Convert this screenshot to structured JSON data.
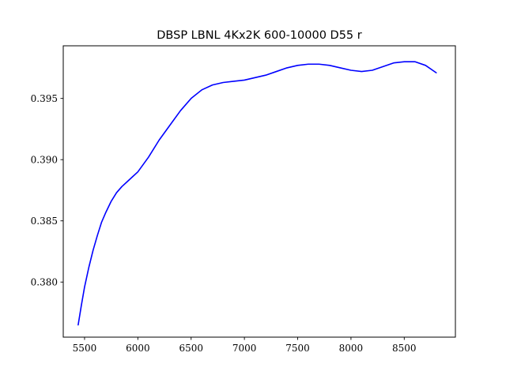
{
  "chart_data": {
    "type": "line",
    "title": "DBSP LBNL 4Kx2K  600-10000  D55 r",
    "xlabel": "",
    "ylabel": "",
    "xlim": [
      5300,
      8980
    ],
    "ylim": [
      0.3755,
      0.3993
    ],
    "xticks": [
      5500,
      6000,
      6500,
      7000,
      7500,
      8000,
      8500
    ],
    "xtick_labels": [
      "5500",
      "6000",
      "6500",
      "7000",
      "7500",
      "8000",
      "8500"
    ],
    "yticks": [
      0.38,
      0.385,
      0.39,
      0.395
    ],
    "ytick_labels": [
      "0.380",
      "0.385",
      "0.390",
      "0.395"
    ],
    "grid": false,
    "colors": {
      "line": "#0000ff"
    },
    "series": [
      {
        "x": [
          5440,
          5470,
          5500,
          5540,
          5580,
          5620,
          5660,
          5700,
          5750,
          5800,
          5850,
          5900,
          5950,
          6000,
          6100,
          6200,
          6300,
          6400,
          6500,
          6600,
          6700,
          6800,
          6900,
          7000,
          7100,
          7200,
          7300,
          7400,
          7500,
          7600,
          7700,
          7800,
          7900,
          8000,
          8100,
          8200,
          8300,
          8400,
          8500,
          8600,
          8700,
          8800
        ],
        "y": [
          0.3765,
          0.3781,
          0.3796,
          0.3812,
          0.3826,
          0.3838,
          0.3849,
          0.3857,
          0.3866,
          0.3873,
          0.3878,
          0.3882,
          0.3886,
          0.389,
          0.3902,
          0.3916,
          0.3928,
          0.394,
          0.395,
          0.3957,
          0.3961,
          0.3963,
          0.3964,
          0.3965,
          0.3967,
          0.3969,
          0.3972,
          0.3975,
          0.3977,
          0.3978,
          0.3978,
          0.3977,
          0.3975,
          0.3973,
          0.3972,
          0.3973,
          0.3976,
          0.3979,
          0.398,
          0.398,
          0.3977,
          0.3971
        ]
      }
    ]
  }
}
